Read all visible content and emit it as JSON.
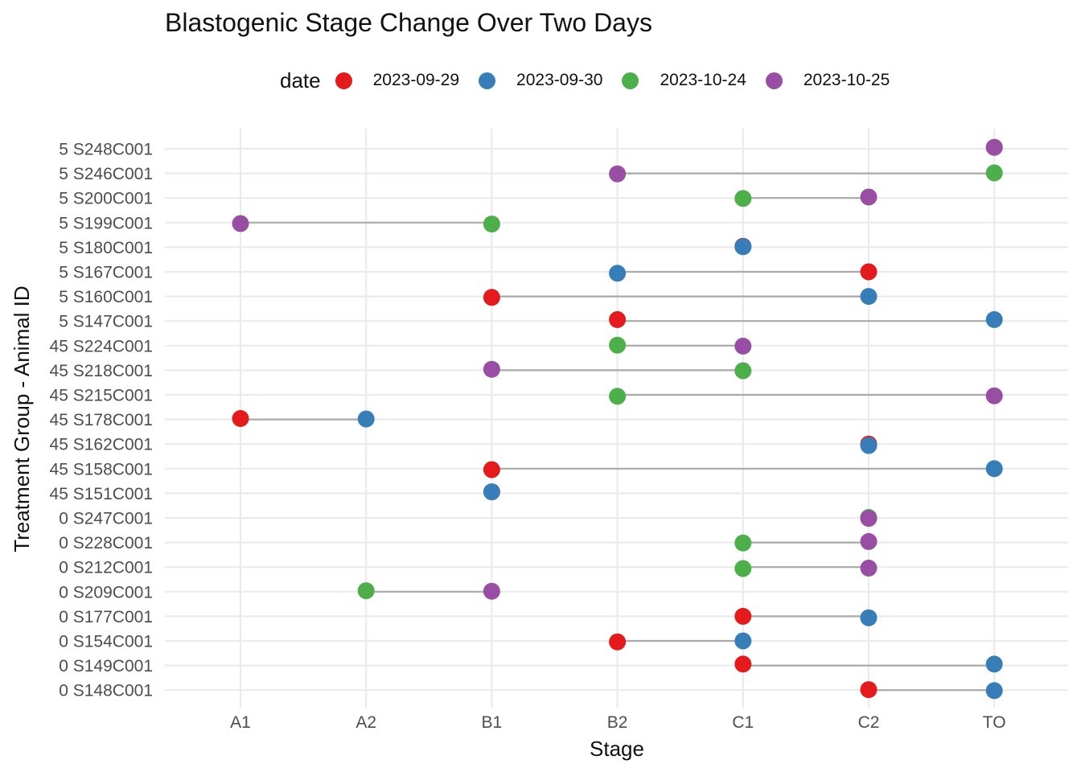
{
  "chart_data": {
    "type": "scatter",
    "title": "Blastogenic Stage Change Over Two Days",
    "xlabel": "Stage",
    "ylabel": "Treatment Group - Animal ID",
    "x_categories": [
      "A1",
      "A2",
      "B1",
      "B2",
      "C1",
      "C2",
      "TO"
    ],
    "legend": {
      "title": "date",
      "position": "top",
      "entries": [
        {
          "label": "2023-09-29",
          "color": "#E41A1C"
        },
        {
          "label": "2023-09-30",
          "color": "#377EB8"
        },
        {
          "label": "2023-10-24",
          "color": "#4DAF4A"
        },
        {
          "label": "2023-10-25",
          "color": "#984EA3"
        }
      ]
    },
    "grid": true,
    "animals": [
      {
        "id": "5 S248C001",
        "points": [
          {
            "date": "2023-10-24",
            "stage": "TO"
          },
          {
            "date": "2023-10-25",
            "stage": "TO"
          }
        ]
      },
      {
        "id": "5 S246C001",
        "points": [
          {
            "date": "2023-10-24",
            "stage": "TO"
          },
          {
            "date": "2023-10-25",
            "stage": "B2"
          }
        ]
      },
      {
        "id": "5 S200C001",
        "points": [
          {
            "date": "2023-10-24",
            "stage": "C1"
          },
          {
            "date": "2023-10-25",
            "stage": "C2"
          }
        ]
      },
      {
        "id": "5 S199C001",
        "points": [
          {
            "date": "2023-10-24",
            "stage": "B1"
          },
          {
            "date": "2023-10-25",
            "stage": "A1"
          }
        ]
      },
      {
        "id": "5 S180C001",
        "points": [
          {
            "date": "2023-09-29",
            "stage": "C1"
          },
          {
            "date": "2023-09-30",
            "stage": "C1"
          }
        ]
      },
      {
        "id": "5 S167C001",
        "points": [
          {
            "date": "2023-09-29",
            "stage": "C2"
          },
          {
            "date": "2023-09-30",
            "stage": "B2"
          }
        ]
      },
      {
        "id": "5 S160C001",
        "points": [
          {
            "date": "2023-09-29",
            "stage": "B1"
          },
          {
            "date": "2023-09-30",
            "stage": "C2"
          }
        ]
      },
      {
        "id": "5 S147C001",
        "points": [
          {
            "date": "2023-09-29",
            "stage": "B2"
          },
          {
            "date": "2023-09-30",
            "stage": "TO"
          }
        ]
      },
      {
        "id": "45 S224C001",
        "points": [
          {
            "date": "2023-10-24",
            "stage": "B2"
          },
          {
            "date": "2023-10-25",
            "stage": "C1"
          }
        ]
      },
      {
        "id": "45 S218C001",
        "points": [
          {
            "date": "2023-10-24",
            "stage": "C1"
          },
          {
            "date": "2023-10-25",
            "stage": "B1"
          }
        ]
      },
      {
        "id": "45 S215C001",
        "points": [
          {
            "date": "2023-10-24",
            "stage": "B2"
          },
          {
            "date": "2023-10-25",
            "stage": "TO"
          }
        ]
      },
      {
        "id": "45 S178C001",
        "points": [
          {
            "date": "2023-09-29",
            "stage": "A1"
          },
          {
            "date": "2023-09-30",
            "stage": "A2"
          }
        ]
      },
      {
        "id": "45 S162C001",
        "points": [
          {
            "date": "2023-09-29",
            "stage": "C2"
          },
          {
            "date": "2023-09-30",
            "stage": "C2"
          }
        ]
      },
      {
        "id": "45 S158C001",
        "points": [
          {
            "date": "2023-09-29",
            "stage": "B1"
          },
          {
            "date": "2023-09-30",
            "stage": "TO"
          }
        ]
      },
      {
        "id": "45 S151C001",
        "points": [
          {
            "date": "2023-09-29",
            "stage": "B1"
          },
          {
            "date": "2023-09-30",
            "stage": "B1"
          }
        ]
      },
      {
        "id": "0 S247C001",
        "points": [
          {
            "date": "2023-10-24",
            "stage": "C2"
          },
          {
            "date": "2023-10-25",
            "stage": "C2"
          }
        ]
      },
      {
        "id": "0 S228C001",
        "points": [
          {
            "date": "2023-10-24",
            "stage": "C1"
          },
          {
            "date": "2023-10-25",
            "stage": "C2"
          }
        ]
      },
      {
        "id": "0 S212C001",
        "points": [
          {
            "date": "2023-10-24",
            "stage": "C1"
          },
          {
            "date": "2023-10-25",
            "stage": "C2"
          }
        ]
      },
      {
        "id": "0 S209C001",
        "points": [
          {
            "date": "2023-10-24",
            "stage": "A2"
          },
          {
            "date": "2023-10-25",
            "stage": "B1"
          }
        ]
      },
      {
        "id": "0 S177C001",
        "points": [
          {
            "date": "2023-09-29",
            "stage": "C1"
          },
          {
            "date": "2023-09-30",
            "stage": "C2"
          }
        ]
      },
      {
        "id": "0 S154C001",
        "points": [
          {
            "date": "2023-09-29",
            "stage": "B2"
          },
          {
            "date": "2023-09-30",
            "stage": "C1"
          }
        ]
      },
      {
        "id": "0 S149C001",
        "points": [
          {
            "date": "2023-09-29",
            "stage": "C1"
          },
          {
            "date": "2023-09-30",
            "stage": "TO"
          }
        ]
      },
      {
        "id": "0 S148C001",
        "points": [
          {
            "date": "2023-09-29",
            "stage": "C2"
          },
          {
            "date": "2023-09-30",
            "stage": "TO"
          }
        ]
      }
    ]
  },
  "colors": {
    "grid": "#EBEBEB",
    "connector": "#AAAAAA",
    "text": "#4D4D4D"
  }
}
